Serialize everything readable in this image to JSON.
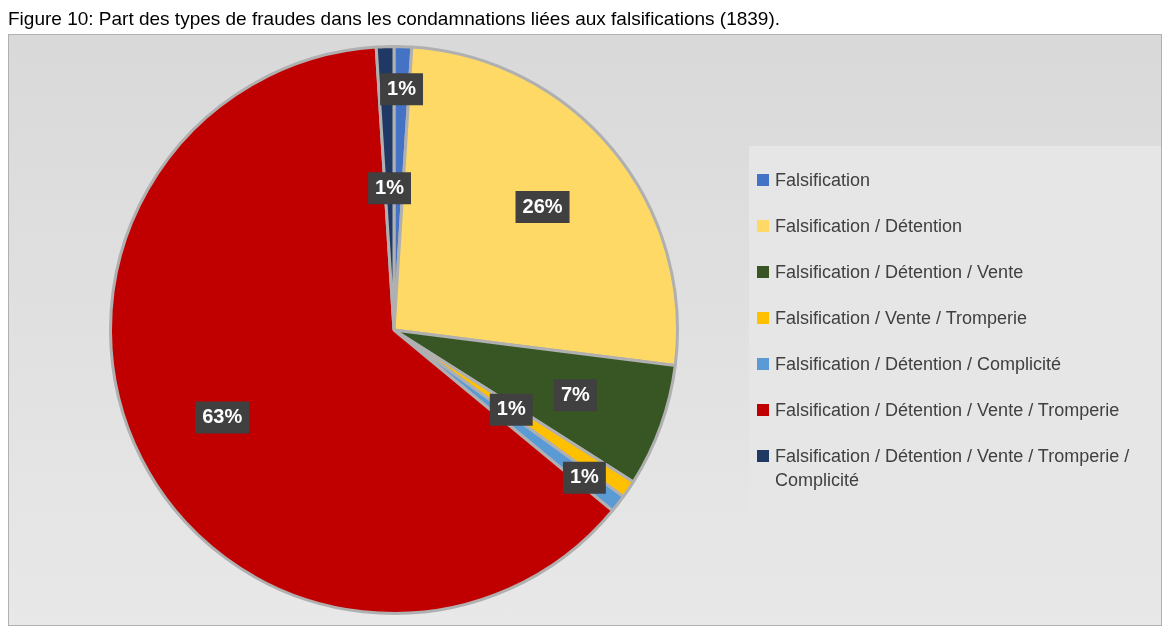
{
  "chart_data": {
    "type": "pie",
    "title": "Figure 10: Part des types de fraudes dans les condamnations liées aux falsifications (1839).",
    "categories": [
      "Falsification",
      "Falsification / Détention",
      "Falsification / Détention / Vente",
      "Falsification / Vente / Tromperie",
      "Falsification / Détention / Complicité",
      "Falsification / Détention / Vente / Tromperie",
      "Falsification / Détention / Vente / Tromperie / Complicité"
    ],
    "values": [
      1,
      26,
      7,
      1,
      1,
      63,
      1
    ],
    "value_labels": [
      "1%",
      "26%",
      "7%",
      "1%",
      "1%",
      "63%",
      "1%"
    ],
    "colors": [
      "#4472c4",
      "#ffd966",
      "#375623",
      "#ffc000",
      "#5b9bd5",
      "#c00000",
      "#203864"
    ],
    "legend": "right"
  }
}
